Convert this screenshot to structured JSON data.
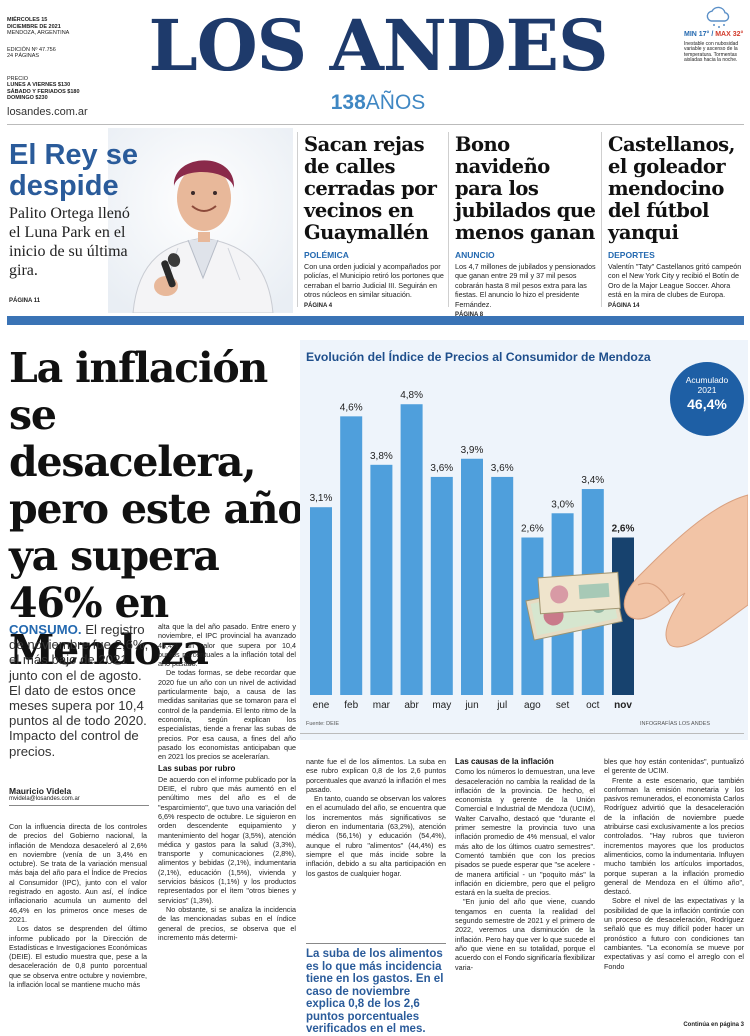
{
  "masthead": {
    "date_line1": "MIÉRCOLES 15",
    "date_line2": "DICIEMBRE DE 2021",
    "location": "MENDOZA, ARGENTINA",
    "edition": "EDICIÓN Nº 47.756",
    "pages": "24 PÁGINAS",
    "price_label": "PRECIO",
    "price_weekday": "LUNES A VIERNES $130",
    "price_saturday": "SÁBADO Y FERIADOS $180",
    "price_sunday": "DOMINGO $230",
    "logo": "LOS ANDES",
    "anniv_number": "138",
    "anniv_word": "AÑOS",
    "website": "losandes.com.ar",
    "weather_min": "MIN 17°",
    "weather_max": "MAX 32°",
    "weather_sep": " / ",
    "weather_text": "Inestable con nubosidad variable y ascenso de la temperatura. Tormentas aisladas hacia la noche.",
    "weather_icon": "cloud-snow-icon"
  },
  "hero": {
    "title": "El Rey se despide",
    "subtitle": "Palito Ortega llenó el Luna Park en el inicio de su última gira.",
    "page": "PÁGINA 11"
  },
  "stories": [
    {
      "title": "Sacan rejas de calles cerradas por vecinos en Guaymallén",
      "tag": "POLÉMICA",
      "body": "Con una orden judicial y acompañados por policías, el Municipio retiró los portones que cerraban el barrio Judicial III. Seguirán en otros núcleos en similar situación.",
      "page": "PÁGINA 4"
    },
    {
      "title": "Bono navideño para los jubilados que menos ganan",
      "tag": "ANUNCIO",
      "body": "Los 4,7 millones de jubilados y pensionados que ganan entre 29 mil y 37 mil pesos cobrarán hasta 8 mil pesos extra para las fiestas. El anuncio lo hizo el presidente Fernández.",
      "page": "PÁGINA 8"
    },
    {
      "title": "Castellanos, el goleador mendocino del fútbol yanqui",
      "tag": "DEPORTES",
      "body": "Valentín \"Taty\" Castellanos gritó campeón con el New York City y recibió el Botín de Oro de la Major League Soccer. Ahora está en la mira de clubes de Europa.",
      "page": "PÁGINA 14"
    }
  ],
  "main": {
    "title": "La inflación se desacelera, pero este año ya supera 46% en Mendoza",
    "kicker": "CONSUMO.",
    "lead": " El registro de noviembre fue 2,6%, el más bajo de 2021 junto con el de agosto. El dato de estos once meses supera por 10,4 puntos al de todo 2020. Impacto del control de precios.",
    "author": "Mauricio Videla",
    "email": "mvidela@losandes.com.ar",
    "col1": "Con la influencia directa de los controles de precios del Gobierno nacional, la inflación de Mendoza desaceleró al 2,6% en noviembre (venía de un 3,4% en octubre). Se trata de la variación mensual más baja del año para el Índice de Precios al Consumidor (IPC), junto con el valor registrado en agosto. Aun así, el índice inflacionario acumula un aumento del 46,4% en los primeros once meses de 2021.",
    "col1b": "Los datos se desprenden del último informe publicado por la Dirección de Estadísticas e Investigaciones Económicas (DEIE). El estudio muestra que, pese a la desaceleración de 0,8 punto porcentual que se observa entre octubre y noviembre, la inflación local se mantiene mucho más",
    "col2": "alta que la del año pasado. Entre enero y noviembre, el IPC provincial ha avanzado 46,4%, un valor que supera por 10,4 puntos porcentuales a la inflación total del año pasado.",
    "col2b": "De todas formas, se debe recordar que 2020 fue un año con un nivel de actividad particularmente bajo, a causa de las medidas sanitarias que se tomaron para el control de la pandemia. El lento ritmo de la economía, según explican los especialistas, tiende a frenar las subas de precios. Por esa causa, a fines del año pasado los economistas anticipaban que en 2021 los precios se acelerarían.",
    "col2_sub": "Las subas por rubro",
    "col2c": "De acuerdo con el informe publicado por la DEIE, el rubro que más aumentó en el penúltimo mes del año es el de \"esparcimiento\", que tuvo una variación del 6,6% respecto de octubre. Le siguieron en orden descendente equipamiento y mantenimiento del hogar (3,5%), atención médica y gastos para la salud (3,3%), transporte y comunicaciones (2,8%), alimentos y bebidas (2,1%), indumentaria (2,1%), educación (1,5%), vivienda y servicios básicos (1,1%) y los productos representados por el ítem \"otros bienes y servicios\" (1,3%).",
    "col2d": "No obstante, si se analiza la incidencia de las mencionadas subas en el índice general de precios, se observa que el incremento más determi-",
    "col3": "nante fue el de los alimentos. La suba en ese rubro explican 0,8 de los 2,6 puntos porcentuales que avanzó la inflación el mes pasado.",
    "col3b": "En tanto, cuando se observan los valores en el acumulado del año, se encuentra que los incrementos más significativos se dieron en indumentaria (63,2%), atención médica (56,1%) y educación (54,4%), aunque el rubro \"alimentos\" (44,4%) es siempre el que más incide sobre la inflación, debido a su alta participación en los gastos de cualquier hogar.",
    "quote": "La suba de los alimentos es lo que más incidencia tiene en los gastos. En el caso de noviembre explica 0,8 de los 2,6 puntos porcentuales verificados en el mes.",
    "col4_sub": "Las causas de la inflación",
    "col4": "Como los números lo demuestran, una leve desaceleración no cambia la realidad de la inflación de la provincia. De hecho, el economista y gerente de la Unión Comercial e Industrial de Mendoza (UCIM), Walter Carvalho, destacó que \"durante el primer semestre la provincia tuvo una inflación promedio de 4% mensual, el valor más alto de los últimos cuatro semestres\". Comentó también que con los precios pisados se puede esperar que \"se acelere - de manera artificial - un \"poquito más\" la inflación en diciembre, pero que el peligro estará en la suelta de precios.",
    "col4b": "\"En junio del año que viene, cuando tengamos en cuenta la realidad del segundo semestre de 2021 y el primero de 2022, veremos una disminución de la inflación. Pero hay que ver lo que sucede el año que viene en su totalidad, porque el acuerdo con el Fondo significaría flexibilizar varia-",
    "col5": "bles que hoy están contenidas\", puntualizó el gerente de UCIM.",
    "col5b": "Frente a este escenario, que también conforman la emisión monetaria y los pasivos remunerados, el economista Carlos Rodríguez advirtió que la desaceleración de la inflación de noviembre puede atribuirse casi exclusivamente a los precios controlados. \"Hay rubros que tuvieron incrementos mayores que los productos alimenticios, como la indumentaria. Influyen mucho también los artículos importados, porque superan a la inflación promedio general de Mendoza en el último año\", destacó.",
    "col5c": "Sobre el nivel de las expectativas y la posibilidad de que la inflación continúe con un proceso de desaceleración, Rodríguez señaló que es muy difícil poder hacer un pronóstico a futuro con condiciones tan cambiantes. \"La economía se mueve por expectativas y así como el arreglo con el Fondo",
    "continued": "Continúa en página 3"
  },
  "chart_data": {
    "type": "bar",
    "title": "Evolución del Índice de Precios al Consumidor de Mendoza",
    "categories": [
      "ene",
      "feb",
      "mar",
      "abr",
      "may",
      "jun",
      "jul",
      "ago",
      "set",
      "oct",
      "nov"
    ],
    "values": [
      3.1,
      4.6,
      3.8,
      4.8,
      3.6,
      3.9,
      3.6,
      2.6,
      3.0,
      3.4,
      2.6
    ],
    "labels": [
      "3,1%",
      "4,6%",
      "3,8%",
      "4,8%",
      "3,6%",
      "3,9%",
      "3,6%",
      "2,6%",
      "3,0%",
      "3,4%",
      "2,6%"
    ],
    "ylim": [
      0,
      5.2
    ],
    "accumulated_label1": "Acumulado",
    "accumulated_label2": "2021",
    "accumulated_value": "46,4%",
    "source": "Fuente: DEIE",
    "credit": "INFOGRAFÍAS LOS ANDES",
    "bar_color": "#4f9fdc",
    "highlight_color": "#17426e"
  }
}
